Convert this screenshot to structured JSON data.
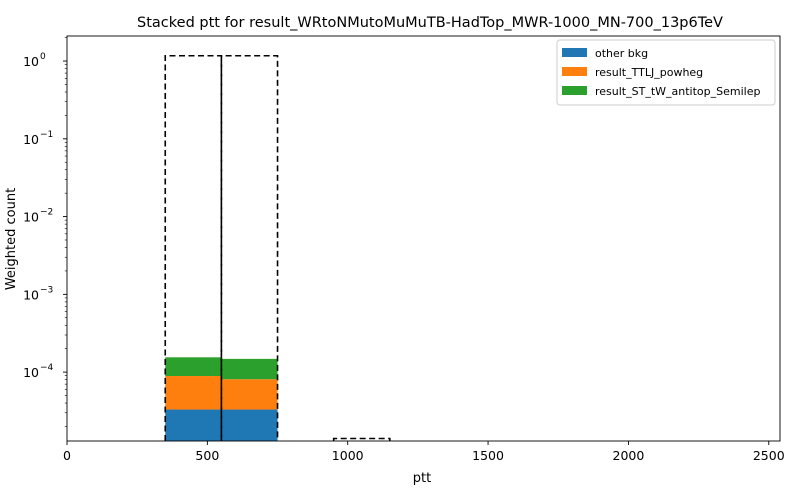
{
  "chart_data": {
    "type": "bar",
    "title": "Stacked ptt for result_WRtoNMutoMuMuTB-HadTop_MWR-1000_MN-700_13p6TeV",
    "xlabel": "ptt",
    "ylabel": "Weighted count",
    "xlim": [
      0,
      2540
    ],
    "ylim": [
      1.3e-05,
      2.1
    ],
    "yscale": "log",
    "grid": false,
    "legend_position": "top-right",
    "x_ticks": [
      {
        "value": 0,
        "label": "0"
      },
      {
        "value": 500,
        "label": "500"
      },
      {
        "value": 1000,
        "label": "1000"
      },
      {
        "value": 1500,
        "label": "1500"
      },
      {
        "value": 2000,
        "label": "2000"
      },
      {
        "value": 2500,
        "label": "2500"
      }
    ],
    "y_ticks": [
      {
        "value": 0.0001,
        "base": "10",
        "exp": "−4"
      },
      {
        "value": 0.001,
        "base": "10",
        "exp": "−3"
      },
      {
        "value": 0.01,
        "base": "10",
        "exp": "−2"
      },
      {
        "value": 0.1,
        "base": "10",
        "exp": "−1"
      },
      {
        "value": 1,
        "base": "10",
        "exp": "0"
      }
    ],
    "bins": [
      [
        350,
        550
      ],
      [
        550,
        750
      ]
    ],
    "series": [
      {
        "name": "other bkg",
        "color": "#1f77b4",
        "values": [
          3.3e-05,
          3.3e-05
        ]
      },
      {
        "name": "result_TTLJ_powheg",
        "color": "#ff7f0e",
        "values": [
          5.6e-05,
          4.8e-05
        ]
      },
      {
        "name": "result_ST_tW_antitop_Semilep",
        "color": "#2ca02c",
        "values": [
          6.6e-05,
          6.7e-05
        ]
      }
    ],
    "signal_outline": {
      "style": "dashed",
      "color": "#000000",
      "bins": [
        [
          350,
          550
        ],
        [
          550,
          750
        ],
        [
          950,
          1150
        ]
      ],
      "values": [
        1.17,
        1.17,
        1.4e-05
      ]
    }
  }
}
